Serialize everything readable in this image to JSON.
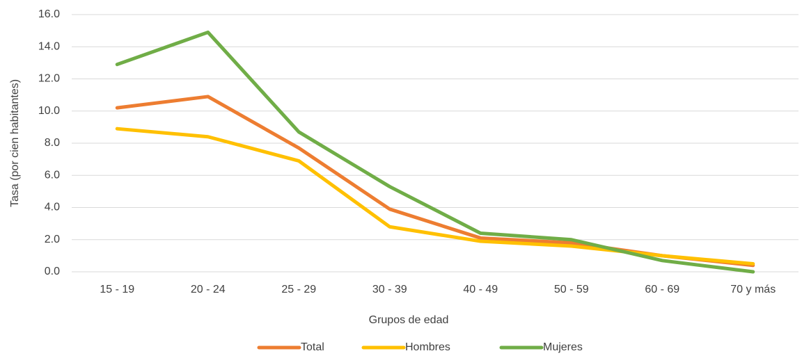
{
  "chart_data": {
    "type": "line",
    "x_label": "Grupos de edad",
    "y_label": "Tasa (por cien habitantes)",
    "categories": [
      "15 - 19",
      "20 - 24",
      "25 - 29",
      "30 - 39",
      "40 - 49",
      "50 - 59",
      "60 - 69",
      "70 y más"
    ],
    "series": [
      {
        "name": "Total",
        "color": "#ed7d31",
        "values": [
          10.2,
          10.9,
          7.7,
          3.9,
          2.1,
          1.8,
          1.0,
          0.4
        ]
      },
      {
        "name": "Hombres",
        "color": "#ffc000",
        "values": [
          8.9,
          8.4,
          6.9,
          2.8,
          1.9,
          1.6,
          1.0,
          0.5
        ]
      },
      {
        "name": "Mujeres",
        "color": "#70ad47",
        "values": [
          12.9,
          14.9,
          8.7,
          5.3,
          2.4,
          2.0,
          0.7,
          0.0
        ]
      }
    ],
    "ylim": [
      0,
      16
    ],
    "yticks": [
      {
        "value": 0,
        "label": "0.0"
      },
      {
        "value": 2,
        "label": "2.0"
      },
      {
        "value": 4,
        "label": "4.0"
      },
      {
        "value": 6,
        "label": "6.0"
      },
      {
        "value": 8,
        "label": "8.0"
      },
      {
        "value": 10,
        "label": "10.0"
      },
      {
        "value": 12,
        "label": "12.0"
      },
      {
        "value": 14,
        "label": "14.0"
      },
      {
        "value": 16,
        "label": "16.0"
      }
    ],
    "grid": true,
    "legend": "bottom"
  }
}
